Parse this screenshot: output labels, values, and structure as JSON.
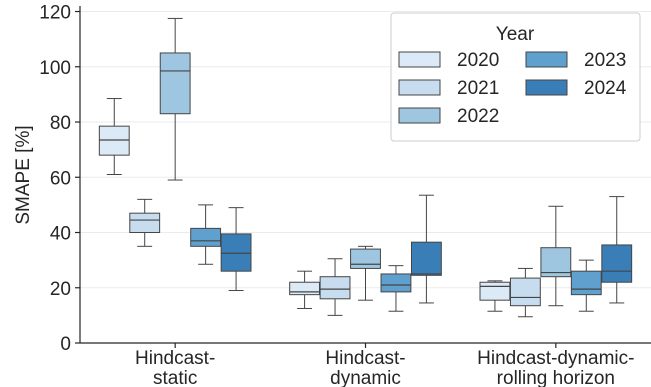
{
  "chart_data": {
    "type": "box",
    "ylabel": "SMAPE [%]",
    "xlabel": "",
    "ylim": [
      0,
      122
    ],
    "y_ticks": [
      "0",
      "20",
      "40",
      "60",
      "80",
      "100",
      "120"
    ],
    "y_tick_values": [
      0,
      20,
      40,
      60,
      80,
      100,
      120
    ],
    "grid": "horizontal",
    "categories": [
      [
        "Hindcast-",
        "static"
      ],
      [
        "Hindcast-",
        "dynamic"
      ],
      [
        "Hindcast-dynamic-",
        "rolling horizon"
      ]
    ],
    "legend": {
      "title": "Year",
      "placement": "top-right",
      "entries": [
        "2020",
        "2021",
        "2022",
        "2023",
        "2024"
      ]
    },
    "series": [
      {
        "name": "2020",
        "color": "#dce9f6",
        "boxes": [
          {
            "whislo": 61,
            "q1": 68,
            "med": 73.5,
            "q3": 78.5,
            "whishi": 88.5
          },
          {
            "whislo": 12.5,
            "q1": 17.5,
            "med": 18.5,
            "q3": 22,
            "whishi": 26
          },
          {
            "whislo": 11.5,
            "q1": 15.5,
            "med": 20.5,
            "q3": 22,
            "whishi": 22.5
          }
        ]
      },
      {
        "name": "2021",
        "color": "#c7dcef",
        "boxes": [
          {
            "whislo": 35,
            "q1": 40,
            "med": 44.5,
            "q3": 47,
            "whishi": 52
          },
          {
            "whislo": 10,
            "q1": 16,
            "med": 19.5,
            "q3": 24,
            "whishi": 30.5
          },
          {
            "whislo": 9.5,
            "q1": 13.5,
            "med": 16.5,
            "q3": 23.5,
            "whishi": 27
          }
        ]
      },
      {
        "name": "2022",
        "color": "#9fc6e0",
        "boxes": [
          {
            "whislo": 59,
            "q1": 83,
            "med": 98.5,
            "q3": 105,
            "whishi": 117.5
          },
          {
            "whislo": 15.5,
            "q1": 27,
            "med": 28.5,
            "q3": 34,
            "whishi": 35
          },
          {
            "whislo": 13.5,
            "q1": 24,
            "med": 25.5,
            "q3": 34.5,
            "whishi": 49.5
          }
        ]
      },
      {
        "name": "2023",
        "color": "#5fa0cf",
        "boxes": [
          {
            "whislo": 28.5,
            "q1": 35,
            "med": 37,
            "q3": 41.5,
            "whishi": 50
          },
          {
            "whislo": 11.5,
            "q1": 18.5,
            "med": 21,
            "q3": 25,
            "whishi": 28
          },
          {
            "whislo": 11.5,
            "q1": 17.5,
            "med": 19.5,
            "q3": 26,
            "whishi": 30
          }
        ]
      },
      {
        "name": "2024",
        "color": "#3a7eb8",
        "boxes": [
          {
            "whislo": 19,
            "q1": 26,
            "med": 32.5,
            "q3": 39.5,
            "whishi": 49
          },
          {
            "whislo": 14.5,
            "q1": 24.5,
            "med": 25,
            "q3": 36.5,
            "whishi": 53.5
          },
          {
            "whislo": 14.5,
            "q1": 22,
            "med": 26,
            "q3": 35.5,
            "whishi": 53
          }
        ]
      }
    ]
  }
}
